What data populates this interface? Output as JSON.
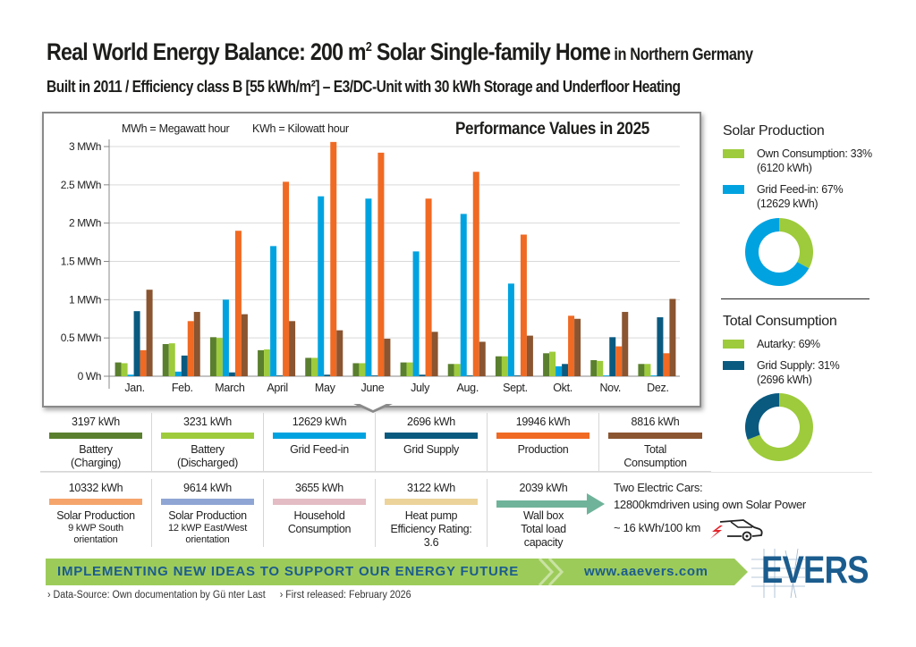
{
  "header": {
    "title": "Real World Energy Balance: 200 m",
    "title_sup": "2",
    "title_rest": " Solar Single-family Home",
    "title_small": " in Northern Germany",
    "subtitle": "Built in 2011 / Efficiency class B  [55 kWh/m²] – E3/DC-Unit with 30 kWh Storage and Underfloor Heating"
  },
  "chart_notes": {
    "mwh": "MWh = Megawatt  hour",
    "kwh": "KWh = Kilowatt  hour"
  },
  "colors": {
    "battery_charging": "#5a7f2e",
    "battery_discharged": "#9dcb3b",
    "grid_feed_in": "#00a3e0",
    "grid_supply": "#0a5a80",
    "production": "#f06a23",
    "total_consumption": "#8a5530",
    "solar_south": "#f5a56b",
    "solar_east_west": "#8fa6d4",
    "household": "#e3bcc4",
    "heat_pump": "#ecd39a",
    "wall_box": "#6fb39a",
    "banner": "#9dcb5a",
    "brand_blue": "#1b5c8e"
  },
  "chart_data": {
    "type": "bar",
    "title": "Performance Values in 2025",
    "xlabel": "",
    "ylabel": "",
    "ylim": [
      0,
      3
    ],
    "yticks": [
      0,
      0.5,
      1,
      1.5,
      2,
      2.5,
      3
    ],
    "ytick_labels": [
      "0 Wh",
      "0.5 MWh",
      "1 MWh",
      "1.5 MWh",
      "2 MWh",
      "2.5 MWh",
      "3 MWh"
    ],
    "grid": true,
    "legend": "below",
    "categories": [
      "Jan.",
      "Feb.",
      "March",
      "April",
      "May",
      "June",
      "July",
      "Aug.",
      "Sept.",
      "Okt.",
      "Nov.",
      "Dez."
    ],
    "series": [
      {
        "name": "Battery (Charging)",
        "color": "#5a7f2e",
        "values": [
          0.18,
          0.42,
          0.51,
          0.34,
          0.24,
          0.17,
          0.18,
          0.16,
          0.26,
          0.3,
          0.21,
          0.16
        ]
      },
      {
        "name": "Battery (Discharged)",
        "color": "#9dcb3b",
        "values": [
          0.17,
          0.43,
          0.5,
          0.35,
          0.24,
          0.17,
          0.18,
          0.16,
          0.26,
          0.32,
          0.2,
          0.16
        ]
      },
      {
        "name": "Grid Feed-in",
        "color": "#00a3e0",
        "values": [
          0.02,
          0.06,
          1.0,
          1.7,
          2.35,
          2.32,
          1.63,
          2.12,
          1.21,
          0.13,
          0.01,
          0.01
        ]
      },
      {
        "name": "Grid Supply",
        "color": "#0a5a80",
        "values": [
          0.85,
          0.27,
          0.05,
          0.01,
          0.02,
          0.01,
          0.02,
          0.01,
          0.01,
          0.16,
          0.51,
          0.77
        ]
      },
      {
        "name": "Production",
        "color": "#f06a23",
        "values": [
          0.34,
          0.72,
          1.9,
          2.54,
          3.06,
          2.92,
          2.32,
          2.67,
          1.85,
          0.79,
          0.39,
          0.3
        ]
      },
      {
        "name": "Total Consumption",
        "color": "#8a5530",
        "values": [
          1.13,
          0.84,
          0.81,
          0.72,
          0.6,
          0.49,
          0.58,
          0.45,
          0.53,
          0.75,
          0.84,
          1.01
        ]
      }
    ]
  },
  "side": {
    "solar": {
      "title": "Solar Production",
      "own_label": "Own Consumption: 33%",
      "own_value": "(6120 kWh)",
      "feed_label": "Grid Feed-in: 67%",
      "feed_value": "(12629 kWh)",
      "own_pct": 33,
      "feed_pct": 67
    },
    "consumption": {
      "title": "Total Consumption",
      "autarky_label": "Autarky: 69%",
      "supply_label": "Grid Supply: 31%",
      "supply_value": "(2696 kWh)",
      "autarky_pct": 69,
      "supply_pct": 31
    }
  },
  "totals_row1": [
    {
      "value": "3197 kWh",
      "label": "Battery",
      "label2": "(Charging)"
    },
    {
      "value": "3231 kWh",
      "label": "Battery",
      "label2": "(Discharged)"
    },
    {
      "value": "12629 kWh",
      "label": "Grid Feed-in",
      "label2": ""
    },
    {
      "value": "2696 kWh",
      "label": "Grid Supply",
      "label2": ""
    },
    {
      "value": "19946 kWh",
      "label": "Production",
      "label2": ""
    },
    {
      "value": "8816 kWh",
      "label": "Total",
      "label2": "Consumption"
    }
  ],
  "totals_row2": [
    {
      "value": "10332 kWh",
      "label": "Solar Production",
      "sub1": "9 kWP South",
      "sub2": "orientation"
    },
    {
      "value": "9614 kWh",
      "label": "Solar Production",
      "sub1": "12 kWP East/West",
      "sub2": "orientation"
    },
    {
      "value": "3655 kWh",
      "label": "Household",
      "sub1": "Consumption",
      "sub2": ""
    },
    {
      "value": "3122 kWh",
      "label": "Heat pump",
      "sub1": "Efficiency Rating:",
      "sub2": "3.6"
    },
    {
      "value": "2039 kWh",
      "label": "Wall box",
      "sub1": "Total load",
      "sub2": "capacity"
    }
  ],
  "cars": {
    "line1": "Two Electric  Cars:",
    "line2": "12800kmdriven  using own Solar Power",
    "line3": "~ 16 kWh/100 km"
  },
  "banner": {
    "text": "IMPLEMENTING NEW IDEAS TO SUPPORT OUR ENERGY FUTURE",
    "url": "www.aaevers.com",
    "logo": "EVERS"
  },
  "footer": {
    "source": "› Data-Source: Own documentation by Gü nter Last",
    "released": "› First released: February 2026"
  }
}
